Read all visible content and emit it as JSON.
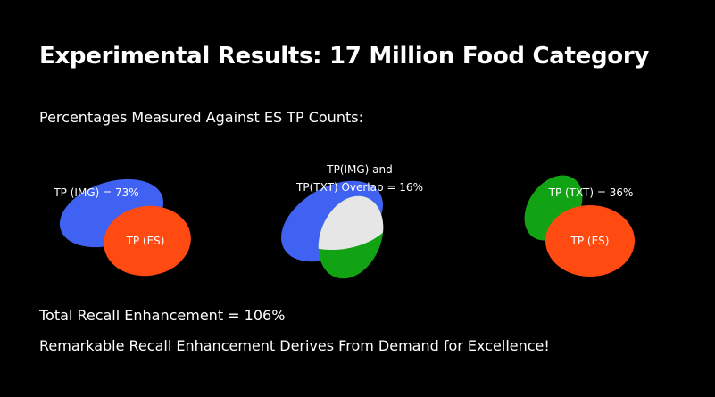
{
  "title": "Experimental Results: 17 Million Food Category",
  "subtitle": "Percentages Measured Against ES TP Counts:",
  "colors": {
    "img": "#3f62f2",
    "es": "#ff4a12",
    "txt": "#12a315",
    "overlap": "#e6e6e6",
    "background": "#000000"
  },
  "diagrams": {
    "img_es": {
      "img_label": "TP (IMG) = 73%",
      "es_label": "TP (ES)"
    },
    "img_txt": {
      "overlap_label_line1": "TP(IMG) and",
      "overlap_label_line2": "TP(TXT) Overlap = 16%"
    },
    "txt_es": {
      "txt_label": "TP (TXT) = 36%",
      "es_label": "TP (ES)"
    }
  },
  "summary": "Total Recall Enhancement = 106%",
  "conclusion": {
    "prefix": "Remarkable Recall Enhancement Derives From ",
    "link": "Demand for Excellence!"
  }
}
